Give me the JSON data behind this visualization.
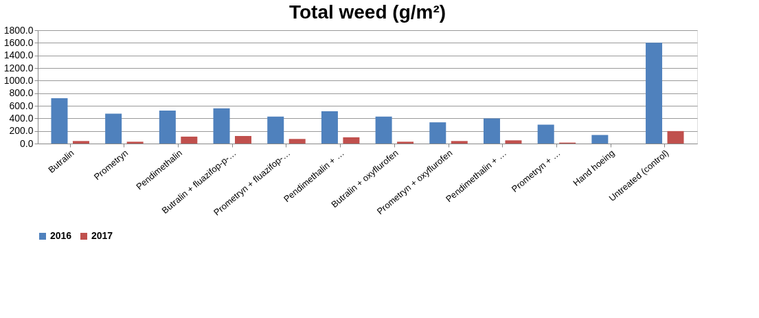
{
  "chart_data": {
    "type": "bar",
    "title": "Total weed (g/m²)",
    "categories": [
      "Butralin",
      "Prometryn",
      "Pendimethalin",
      "Butralin + fluazifop-p-…",
      "Prometryn +  fluazifop-…",
      "Pendimethalin + …",
      "Butralin + oxyflurofen",
      "Prometryn + oxyflurofen",
      "Pendimethalin + …",
      "Prometryn + …",
      "Hand hoeing",
      "Untreated (control)"
    ],
    "series": [
      {
        "name": "2016",
        "color": "#4f81bd",
        "values": [
          720,
          475,
          523,
          560,
          428,
          512,
          428,
          337,
          399,
          300,
          136,
          1600
        ]
      },
      {
        "name": "2017",
        "color": "#c0504d",
        "values": [
          40,
          29,
          110,
          120,
          73,
          99,
          29,
          40,
          51,
          15,
          0,
          198
        ]
      }
    ],
    "ylim": [
      0,
      1800
    ],
    "yticks": [
      {
        "value": 0,
        "label": "0.0"
      },
      {
        "value": 200,
        "label": "200.0"
      },
      {
        "value": 400,
        "label": "400.0"
      },
      {
        "value": 600,
        "label": "600.0"
      },
      {
        "value": 800,
        "label": "800.0"
      },
      {
        "value": 1000,
        "label": "1000.0"
      },
      {
        "value": 1200,
        "label": "1200.0"
      },
      {
        "value": 1400,
        "label": "1400.0"
      },
      {
        "value": 1600,
        "label": "1600.0"
      },
      {
        "value": 1800,
        "label": "1800.0"
      }
    ],
    "grid": "y",
    "legend": "bottom"
  }
}
